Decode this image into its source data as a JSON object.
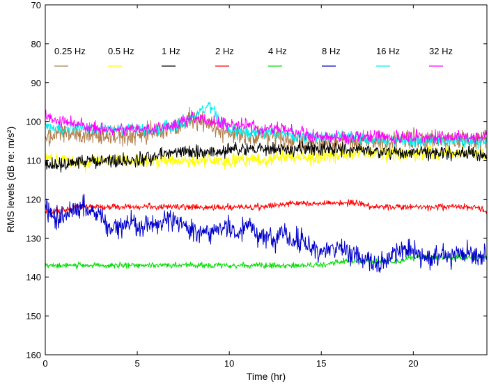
{
  "chart_data": {
    "type": "line",
    "xlabel": "Time (hr)",
    "ylabel": "RMS levels (dB re: m/s²)",
    "xlim": [
      0,
      24
    ],
    "ylim": [
      70,
      160
    ],
    "y_reversed": true,
    "x_ticks": [
      0,
      5,
      10,
      15,
      20
    ],
    "y_ticks": [
      70,
      80,
      90,
      100,
      110,
      120,
      130,
      140,
      150,
      160
    ],
    "grid": false,
    "legend": "top, horizontal row inside plot",
    "series": [
      {
        "name": "0.25 Hz",
        "color": "#b07c4a",
        "x": [
          0,
          1,
          2,
          3,
          4,
          5,
          6,
          7,
          7.5,
          8,
          8.5,
          9,
          9.5,
          10,
          11,
          12,
          13,
          14,
          15,
          16,
          17,
          18,
          19,
          20,
          21,
          22,
          23,
          24
        ],
        "y": [
          104,
          103,
          103,
          104,
          104,
          103,
          103,
          102,
          101,
          99,
          100,
          101,
          102,
          103,
          104,
          104,
          104,
          105,
          106,
          105,
          105,
          105,
          105,
          105,
          105,
          105,
          105,
          104
        ]
      },
      {
        "name": "0.5 Hz",
        "color": "#ffff00",
        "x": [
          0,
          1,
          2,
          3,
          4,
          5,
          6,
          7,
          8,
          9,
          10,
          11,
          12,
          13,
          14,
          15,
          16,
          17,
          18,
          19,
          20,
          21,
          22,
          23,
          24
        ],
        "y": [
          110,
          110,
          111,
          110,
          110,
          110,
          110,
          110,
          110,
          110,
          110,
          110,
          110,
          109,
          109,
          109,
          109,
          108,
          108,
          108,
          108,
          108,
          108,
          108,
          108
        ]
      },
      {
        "name": "1 Hz",
        "color": "#000000",
        "x": [
          0,
          1,
          2,
          3,
          4,
          5,
          6,
          7,
          8,
          9,
          10,
          11,
          12,
          13,
          14,
          15,
          16,
          17,
          18,
          19,
          20,
          21,
          22,
          23,
          24
        ],
        "y": [
          111,
          111,
          110,
          110,
          110,
          110,
          109,
          108,
          108,
          108,
          107,
          107,
          107,
          107,
          107,
          107,
          107,
          107,
          108,
          108,
          108,
          108,
          108,
          108,
          109
        ]
      },
      {
        "name": "2 Hz",
        "color": "#ff0000",
        "x": [
          0,
          1,
          2,
          3,
          4,
          5,
          6,
          7,
          8,
          9,
          10,
          11,
          12,
          13,
          14,
          15,
          16,
          17,
          18,
          19,
          20,
          21,
          22,
          23,
          24
        ],
        "y": [
          123,
          123,
          122,
          122,
          122,
          122,
          122,
          122,
          122,
          122,
          122,
          122,
          122,
          121,
          121,
          121,
          121,
          121,
          122,
          122,
          122,
          122,
          122,
          122,
          123
        ]
      },
      {
        "name": "4 Hz",
        "color": "#00dd00",
        "x": [
          0,
          1,
          2,
          3,
          4,
          5,
          6,
          7,
          8,
          9,
          10,
          11,
          12,
          13,
          14,
          15,
          16,
          17,
          18,
          19,
          20,
          21,
          22,
          23,
          24
        ],
        "y": [
          137,
          137,
          137,
          137,
          137,
          137,
          137,
          137,
          137,
          137,
          137,
          137,
          137,
          137,
          137,
          137,
          136,
          136,
          136,
          136,
          135,
          135,
          135,
          135,
          135
        ]
      },
      {
        "name": "8 Hz",
        "color": "#0000cc",
        "x": [
          0,
          0.5,
          1,
          1.5,
          2,
          2.5,
          3,
          3.5,
          4,
          4.5,
          5,
          5.5,
          6,
          6.5,
          7,
          7.5,
          8,
          8.5,
          9,
          9.5,
          10,
          10.5,
          11,
          11.5,
          12,
          12.5,
          13,
          13.5,
          14,
          14.5,
          15,
          15.5,
          16,
          16.5,
          17,
          17.5,
          18,
          18.5,
          19,
          19.5,
          20,
          20.5,
          21,
          21.5,
          22,
          22.5,
          23,
          23.5,
          24
        ],
        "y": [
          123,
          125,
          124,
          123,
          122,
          123,
          124,
          128,
          127,
          126,
          127,
          126,
          127,
          126,
          125,
          127,
          128,
          128,
          129,
          128,
          127,
          129,
          126,
          129,
          130,
          131,
          128,
          131,
          130,
          132,
          134,
          133,
          132,
          134,
          135,
          136,
          137,
          136,
          134,
          133,
          133,
          135,
          135,
          134,
          135,
          134,
          134,
          135,
          135
        ]
      },
      {
        "name": "16 Hz",
        "color": "#00eeee",
        "x": [
          0,
          1,
          2,
          3,
          4,
          5,
          6,
          7,
          7.5,
          8,
          8.5,
          9,
          9.5,
          10,
          11,
          12,
          13,
          14,
          15,
          16,
          17,
          18,
          19,
          20,
          21,
          22,
          23,
          24
        ],
        "y": [
          101,
          102,
          102,
          102,
          102,
          102,
          102,
          101,
          100,
          99,
          97,
          96,
          100,
          102,
          103,
          103,
          103,
          104,
          104,
          104,
          104,
          105,
          105,
          105,
          105,
          105,
          105,
          105
        ]
      },
      {
        "name": "32 Hz",
        "color": "#ff00ff",
        "x": [
          0,
          1,
          2,
          3,
          4,
          5,
          6,
          7,
          7.5,
          8,
          8.5,
          9,
          9.5,
          10,
          11,
          12,
          13,
          14,
          15,
          16,
          17,
          18,
          19,
          20,
          21,
          22,
          23,
          24
        ],
        "y": [
          99,
          100,
          101,
          102,
          102,
          102,
          102,
          101,
          100,
          99,
          99,
          100,
          100,
          101,
          101,
          102,
          102,
          103,
          104,
          104,
          104,
          104,
          104,
          104,
          104,
          104,
          104,
          104
        ]
      }
    ]
  }
}
